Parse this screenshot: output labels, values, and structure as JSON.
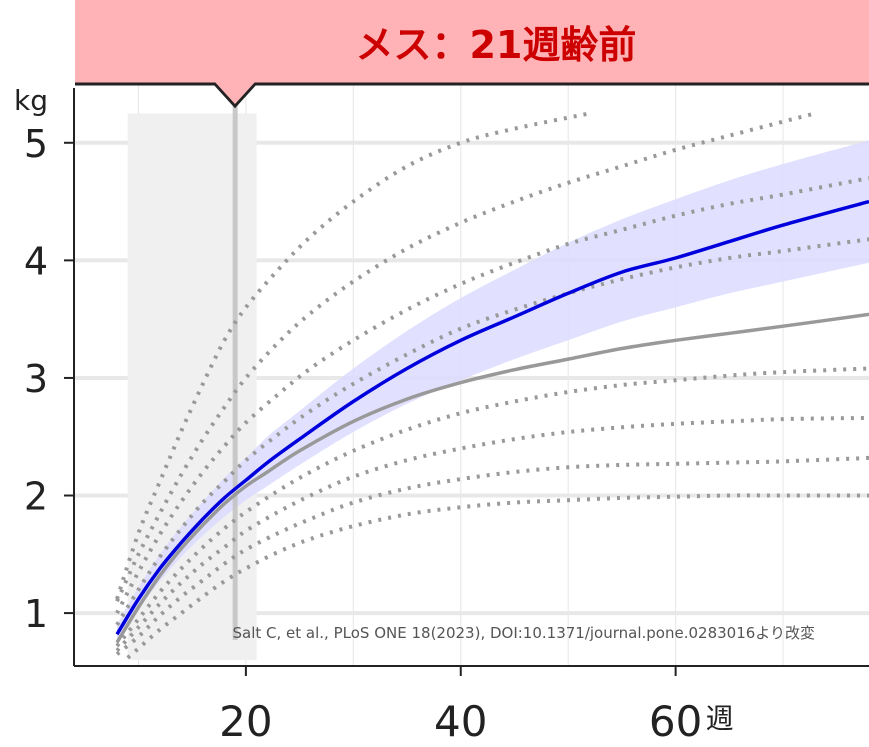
{
  "banner": {
    "text": "メス：21週齢前",
    "color": "#ffb3b6",
    "text_color": "#cc0000"
  },
  "credit": "Salt C, et al., PLoS ONE 18(2023), DOI:10.1371/journal.pone.0283016より改変",
  "chart_data": {
    "type": "line",
    "title": "",
    "xlabel": "週",
    "ylabel": "kg",
    "xlim": [
      4,
      78
    ],
    "ylim": [
      0.55,
      5.5
    ],
    "x_ticks": [
      20,
      40,
      60
    ],
    "y_ticks": [
      1,
      2,
      3,
      4,
      5
    ],
    "grid": true,
    "marker": {
      "x": 19,
      "label": "21週齢前"
    },
    "shaded_region": {
      "x": [
        9,
        21
      ],
      "y": [
        0.6,
        5.25
      ]
    },
    "series": [
      {
        "role": "individual-curve",
        "color": "#0000dd",
        "x": [
          8,
          10,
          12,
          14,
          16,
          18,
          20,
          22,
          25,
          30,
          35,
          40,
          45,
          50,
          55,
          60,
          65,
          70,
          78
        ],
        "y": [
          0.82,
          1.12,
          1.38,
          1.6,
          1.8,
          1.98,
          2.13,
          2.28,
          2.48,
          2.8,
          3.08,
          3.32,
          3.52,
          3.72,
          3.9,
          4.02,
          4.16,
          4.3,
          4.5
        ]
      },
      {
        "role": "individual-band",
        "color": "#dcdcff",
        "x": [
          8,
          10,
          12,
          14,
          16,
          18,
          20,
          22,
          25,
          30,
          35,
          40,
          45,
          50,
          55,
          60,
          65,
          70,
          78
        ],
        "upper": [
          0.9,
          1.22,
          1.5,
          1.74,
          1.95,
          2.15,
          2.32,
          2.5,
          2.72,
          3.08,
          3.4,
          3.68,
          3.92,
          4.15,
          4.35,
          4.52,
          4.68,
          4.82,
          5.02
        ],
        "lower": [
          0.76,
          1.03,
          1.27,
          1.48,
          1.66,
          1.82,
          1.96,
          2.08,
          2.26,
          2.54,
          2.78,
          2.98,
          3.16,
          3.32,
          3.48,
          3.6,
          3.72,
          3.82,
          3.98
        ]
      },
      {
        "role": "reference-median",
        "color": "#999999",
        "x": [
          8,
          10,
          12,
          14,
          16,
          18,
          20,
          22,
          25,
          30,
          35,
          40,
          45,
          50,
          55,
          60,
          65,
          70,
          78
        ],
        "y": [
          0.75,
          1.05,
          1.32,
          1.55,
          1.75,
          1.93,
          2.08,
          2.2,
          2.38,
          2.63,
          2.82,
          2.96,
          3.07,
          3.16,
          3.25,
          3.32,
          3.38,
          3.44,
          3.54
        ]
      },
      {
        "role": "reference-centile",
        "dashed": true,
        "color": "#999999",
        "x": [
          8,
          10,
          12,
          14,
          16,
          18,
          20,
          23,
          26,
          30,
          35,
          40,
          45,
          52
        ],
        "y": [
          1.12,
          1.68,
          2.12,
          2.55,
          2.95,
          3.32,
          3.6,
          3.92,
          4.2,
          4.5,
          4.8,
          5.0,
          5.12,
          5.25
        ]
      },
      {
        "role": "reference-centile",
        "dashed": true,
        "color": "#999999",
        "x": [
          8,
          10,
          12,
          14,
          16,
          18,
          20,
          23,
          26,
          30,
          35,
          40,
          45,
          50,
          55,
          60,
          65,
          70,
          73
        ],
        "y": [
          1.1,
          1.5,
          1.85,
          2.18,
          2.48,
          2.75,
          3.0,
          3.3,
          3.55,
          3.82,
          4.1,
          4.32,
          4.5,
          4.66,
          4.8,
          4.94,
          5.06,
          5.18,
          5.25
        ]
      },
      {
        "role": "reference-centile",
        "dashed": true,
        "color": "#999999",
        "x": [
          8,
          10,
          12,
          14,
          16,
          18,
          20,
          23,
          26,
          30,
          35,
          40,
          45,
          50,
          55,
          60,
          65,
          70,
          78
        ],
        "y": [
          1.0,
          1.35,
          1.67,
          1.95,
          2.2,
          2.42,
          2.62,
          2.86,
          3.08,
          3.32,
          3.58,
          3.8,
          3.98,
          4.14,
          4.26,
          4.38,
          4.48,
          4.56,
          4.7
        ]
      },
      {
        "role": "reference-centile",
        "dashed": true,
        "color": "#999999",
        "x": [
          8,
          10,
          12,
          14,
          16,
          18,
          20,
          23,
          26,
          30,
          35,
          40,
          45,
          50,
          55,
          60,
          65,
          70,
          78
        ],
        "y": [
          0.9,
          1.2,
          1.48,
          1.72,
          1.94,
          2.12,
          2.3,
          2.52,
          2.72,
          2.95,
          3.2,
          3.42,
          3.58,
          3.72,
          3.84,
          3.94,
          4.02,
          4.08,
          4.18
        ]
      },
      {
        "role": "reference-centile",
        "dashed": true,
        "color": "#999999",
        "x": [
          8,
          10,
          12,
          14,
          16,
          18,
          20,
          23,
          26,
          30,
          35,
          40,
          45,
          50,
          55,
          60,
          65,
          70,
          78
        ],
        "y": [
          0.72,
          0.95,
          1.18,
          1.38,
          1.56,
          1.72,
          1.86,
          2.04,
          2.2,
          2.38,
          2.56,
          2.7,
          2.8,
          2.88,
          2.94,
          2.98,
          3.02,
          3.05,
          3.08
        ]
      },
      {
        "role": "reference-centile",
        "dashed": true,
        "color": "#999999",
        "x": [
          8,
          10,
          12,
          14,
          16,
          18,
          20,
          23,
          26,
          30,
          35,
          40,
          45,
          50,
          55,
          60,
          65,
          70,
          78
        ],
        "y": [
          0.68,
          0.88,
          1.08,
          1.26,
          1.42,
          1.56,
          1.7,
          1.86,
          2.0,
          2.16,
          2.3,
          2.4,
          2.48,
          2.54,
          2.58,
          2.61,
          2.63,
          2.65,
          2.66
        ]
      },
      {
        "role": "reference-centile",
        "dashed": true,
        "color": "#999999",
        "x": [
          8,
          10,
          12,
          14,
          16,
          18,
          20,
          23,
          26,
          30,
          35,
          40,
          45,
          50,
          55,
          60,
          65,
          70,
          78
        ],
        "y": [
          0.65,
          0.8,
          0.98,
          1.14,
          1.28,
          1.42,
          1.54,
          1.68,
          1.8,
          1.94,
          2.06,
          2.14,
          2.2,
          2.24,
          2.26,
          2.27,
          2.28,
          2.29,
          2.32
        ]
      },
      {
        "role": "reference-centile",
        "dashed": true,
        "color": "#999999",
        "x": [
          9,
          10,
          12,
          14,
          16,
          18,
          20,
          23,
          26,
          30,
          35,
          40,
          45,
          50,
          55,
          60,
          65,
          70,
          78
        ],
        "y": [
          0.62,
          0.7,
          0.86,
          1.0,
          1.14,
          1.27,
          1.38,
          1.52,
          1.63,
          1.74,
          1.84,
          1.9,
          1.94,
          1.96,
          1.98,
          1.99,
          2.0,
          2.0,
          2.0
        ]
      }
    ]
  }
}
